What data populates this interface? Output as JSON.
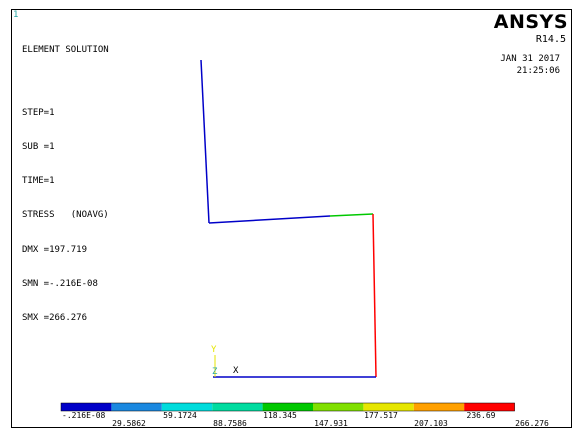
{
  "window_number": "1",
  "title": "ELEMENT SOLUTION",
  "info_lines": [
    "STEP=1",
    "SUB =1",
    "TIME=1",
    "STRESS   (NOAVG)",
    "DMX =197.719",
    "SMN =-.216E-08",
    "SMX =266.276"
  ],
  "logo": "ANSYS",
  "release": "R14.5",
  "date": "JAN 31 2017",
  "time": "21:25:06",
  "triad": {
    "y_label": "Y",
    "z_label": "Z",
    "x_label": "X",
    "y_color": "#e6e600",
    "z_color": "#2aa7a7",
    "x_color": "#000000"
  },
  "legend": {
    "colors": [
      "#0000c8",
      "#1a88e0",
      "#00dcdc",
      "#00dca0",
      "#00c800",
      "#80e000",
      "#e6e600",
      "#ffa000",
      "#ff0000"
    ],
    "labels_top": [
      "-.216E-08",
      "59.1724",
      "118.345",
      "177.517",
      "236.69"
    ],
    "labels_bottom": [
      "29.5862",
      "88.7586",
      "147.931",
      "207.103",
      "266.276"
    ]
  },
  "colors": {
    "background": "#ffffff",
    "frame": "#000000"
  }
}
